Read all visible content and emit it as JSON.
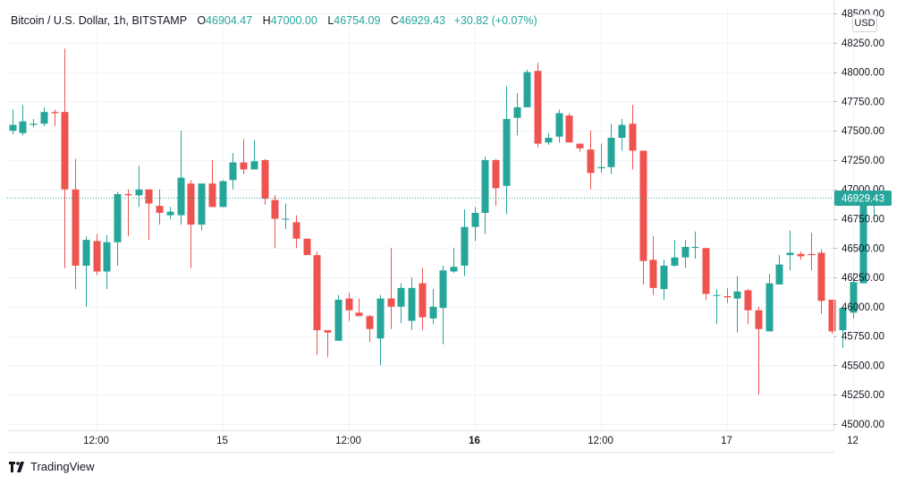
{
  "header": {
    "symbol": "Bitcoin / U.S. Dollar, 1h, BITSTAMP",
    "open_label": "O",
    "open": "46904.47",
    "high_label": "H",
    "high": "47000.00",
    "low_label": "L",
    "low": "46754.09",
    "close_label": "C",
    "close": "46929.43",
    "change": "+30.82 (+0.07%)"
  },
  "currency_button": "USD",
  "last_price_label": "46929.43",
  "logo_text": "TradingView",
  "colors": {
    "up": "#26a69a",
    "down": "#ef5350",
    "grid": "#f0f3fa",
    "axis_text": "#131722"
  },
  "chart_data": {
    "type": "candlestick",
    "ylim": [
      45000,
      48500
    ],
    "yticks": [
      {
        "v": 45000,
        "label": "45000.00"
      },
      {
        "v": 45250,
        "label": "45250.00"
      },
      {
        "v": 45500,
        "label": "45500.00"
      },
      {
        "v": 45750,
        "label": "45750.00"
      },
      {
        "v": 46000,
        "label": "46000.00"
      },
      {
        "v": 46250,
        "label": "46250.00"
      },
      {
        "v": 46500,
        "label": "46500.00"
      },
      {
        "v": 46750,
        "label": "46750.00"
      },
      {
        "v": 47000,
        "label": "47000.00"
      },
      {
        "v": 47250,
        "label": "47250.00"
      },
      {
        "v": 47500,
        "label": "47500.00"
      },
      {
        "v": 47750,
        "label": "47750.00"
      },
      {
        "v": 48000,
        "label": "48000.00"
      },
      {
        "v": 48250,
        "label": "48250.00"
      },
      {
        "v": 48500,
        "label": "48500.00"
      }
    ],
    "xticks": [
      {
        "i": 8,
        "label": "12:00",
        "bold": false
      },
      {
        "i": 20,
        "label": "15",
        "bold": false
      },
      {
        "i": 32,
        "label": "12:00",
        "bold": false
      },
      {
        "i": 44,
        "label": "16",
        "bold": true
      },
      {
        "i": 56,
        "label": "12:00",
        "bold": false
      },
      {
        "i": 68,
        "label": "17",
        "bold": false
      },
      {
        "i": 80,
        "label": "12",
        "bold": false
      }
    ],
    "last_price": 46929.43,
    "candles": [
      [
        47500,
        47550,
        47680,
        47470
      ],
      [
        47480,
        47580,
        47720,
        47460
      ],
      [
        47550,
        47560,
        47600,
        47530
      ],
      [
        47560,
        47660,
        47700,
        47540
      ],
      [
        47660,
        47650,
        47680,
        47540
      ],
      [
        47660,
        47000,
        48200,
        46330
      ],
      [
        47000,
        46350,
        47260,
        46150
      ],
      [
        46350,
        46570,
        46600,
        46000
      ],
      [
        46560,
        46300,
        46620,
        46270
      ],
      [
        46300,
        46550,
        46610,
        46150
      ],
      [
        46550,
        46960,
        46980,
        46350
      ],
      [
        46960,
        46950,
        47000,
        46600
      ],
      [
        46950,
        47000,
        47200,
        46850
      ],
      [
        47000,
        46880,
        46950,
        46570
      ],
      [
        46860,
        46800,
        47000,
        46700
      ],
      [
        46780,
        46810,
        46850,
        46750
      ],
      [
        46780,
        47100,
        47500,
        46700
      ],
      [
        47050,
        46700,
        47080,
        46330
      ],
      [
        46700,
        47050,
        47050,
        46650
      ],
      [
        47050,
        46850,
        47250,
        46850
      ],
      [
        46850,
        47070,
        47080,
        46850
      ],
      [
        47080,
        47230,
        47310,
        47000
      ],
      [
        47230,
        47170,
        47430,
        47130
      ],
      [
        47170,
        47240,
        47420,
        47170
      ],
      [
        47250,
        46920,
        47260,
        46870
      ],
      [
        46910,
        46750,
        46950,
        46500
      ],
      [
        46750,
        46750,
        46880,
        46660
      ],
      [
        46720,
        46580,
        46780,
        46500
      ],
      [
        46580,
        46440,
        46570,
        46470
      ],
      [
        46440,
        45800,
        46470,
        45590
      ],
      [
        45800,
        45780,
        45800,
        45570
      ],
      [
        45710,
        46060,
        46100,
        45710
      ],
      [
        46070,
        45970,
        46120,
        45880
      ],
      [
        45950,
        45920,
        46070,
        45930
      ],
      [
        45920,
        45810,
        45930,
        45700
      ],
      [
        45730,
        46070,
        46100,
        45500
      ],
      [
        46070,
        46000,
        46500,
        45810
      ],
      [
        46000,
        46160,
        46200,
        45860
      ],
      [
        45880,
        46160,
        46250,
        45800
      ],
      [
        46200,
        45910,
        46330,
        45800
      ],
      [
        45900,
        46000,
        46150,
        45850
      ],
      [
        45990,
        46310,
        46350,
        45680
      ],
      [
        46300,
        46340,
        46500,
        46290
      ],
      [
        46350,
        46680,
        46830,
        46260
      ],
      [
        46680,
        46800,
        46850,
        46560
      ],
      [
        46800,
        47250,
        47280,
        46620
      ],
      [
        47250,
        47010,
        47260,
        46860
      ],
      [
        47030,
        47600,
        47880,
        46790
      ],
      [
        47610,
        47700,
        47820,
        47460
      ],
      [
        47700,
        48000,
        48020,
        47700
      ],
      [
        48010,
        47390,
        48080,
        47360
      ],
      [
        47400,
        47440,
        47480,
        47380
      ],
      [
        47450,
        47650,
        47680,
        47400
      ],
      [
        47630,
        47400,
        47650,
        47440
      ],
      [
        47390,
        47350,
        47380,
        47320
      ],
      [
        47340,
        47140,
        47500,
        47000
      ],
      [
        47180,
        47190,
        47390,
        47140
      ],
      [
        47190,
        47440,
        47560,
        47130
      ],
      [
        47440,
        47550,
        47600,
        47330
      ],
      [
        47560,
        47330,
        47720,
        47170
      ],
      [
        47330,
        46390,
        47330,
        46190
      ],
      [
        46400,
        46160,
        46600,
        46100
      ],
      [
        46150,
        46350,
        46400,
        46060
      ],
      [
        46350,
        46420,
        46570,
        46340
      ],
      [
        46420,
        46510,
        46570,
        46330
      ],
      [
        46510,
        46510,
        46640,
        46410
      ],
      [
        46500,
        46110,
        46500,
        46060
      ],
      [
        46100,
        46100,
        46150,
        45850
      ],
      [
        46090,
        46080,
        46160,
        46030
      ],
      [
        46070,
        46130,
        46260,
        45780
      ],
      [
        46140,
        45970,
        46150,
        45850
      ],
      [
        45970,
        45810,
        46000,
        45250
      ],
      [
        45790,
        46200,
        46280,
        45790
      ],
      [
        46190,
        46360,
        46440,
        46190
      ],
      [
        46440,
        46460,
        46650,
        46310
      ],
      [
        46450,
        46430,
        46470,
        46400
      ],
      [
        46450,
        46440,
        46630,
        46310
      ],
      [
        46460,
        46050,
        46490,
        45940
      ],
      [
        46060,
        45790,
        46060,
        45770
      ],
      [
        45800,
        45990,
        46000,
        45650
      ],
      [
        45950,
        46210,
        46290,
        45900
      ],
      [
        46200,
        46910,
        46920,
        46200
      ],
      [
        46910,
        46930,
        47000,
        46750
      ]
    ]
  }
}
